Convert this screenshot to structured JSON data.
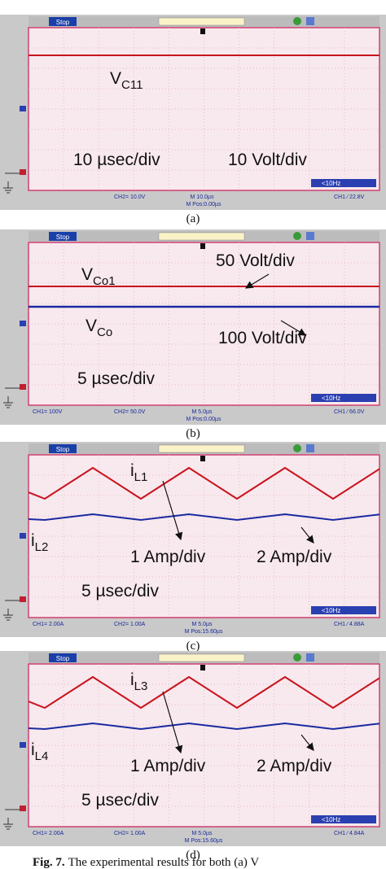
{
  "panels": [
    {
      "caption": "(a)",
      "status": "Stop",
      "readouts": {
        "ch2": "CH2= 10.0V",
        "time": "M 10.0µs",
        "pos": "M Pos:0.00µs",
        "trig": "CH1 ∕ 22.8V",
        "freq": "<10Hz"
      },
      "annotations": [
        {
          "text": "V",
          "sub": "C11"
        },
        {
          "text": "10 µsec/div"
        },
        {
          "text": "10 Volt/div"
        }
      ]
    },
    {
      "caption": "(b)",
      "status": "Stop",
      "readouts": {
        "ch1": "CH1= 100V",
        "ch2": "CH2= 50.0V",
        "time": "M 5.0µs",
        "pos": "M Pos:0.00µs",
        "trig": "CH1 ∕ 66.0V",
        "freq": "<10Hz"
      },
      "annotations": [
        {
          "text": "V",
          "sub": "Co1"
        },
        {
          "text": "50 Volt/div"
        },
        {
          "text": "V",
          "sub": "Co"
        },
        {
          "text": "100 Volt/div"
        },
        {
          "text": "5 µsec/div"
        }
      ]
    },
    {
      "caption": "(c)",
      "status": "Stop",
      "readouts": {
        "ch1": "CH1= 2.00A",
        "ch2": "CH2= 1.00A",
        "time": "M 5.0µs",
        "pos": "M Pos:15.60µs",
        "trig": "CH1 ∕ 4.88A",
        "freq": "<10Hz"
      },
      "annotations": [
        {
          "text": "i",
          "sub": "L1"
        },
        {
          "text": "i",
          "sub": "L2"
        },
        {
          "text": "1 Amp/div"
        },
        {
          "text": "2 Amp/div"
        },
        {
          "text": "5 µsec/div"
        }
      ]
    },
    {
      "caption": "(d)",
      "status": "Stop",
      "readouts": {
        "ch1": "CH1= 2.00A",
        "ch2": "CH2= 1.00A",
        "time": "M 5.0µs",
        "pos": "M Pos:15.60µs",
        "trig": "CH1 ∕ 4.84A",
        "freq": "<10Hz"
      },
      "annotations": [
        {
          "text": "i",
          "sub": "L3"
        },
        {
          "text": "i",
          "sub": "L4"
        },
        {
          "text": "1 Amp/div"
        },
        {
          "text": "2 Amp/div"
        },
        {
          "text": "5 µsec/div"
        }
      ]
    }
  ],
  "figure_caption": {
    "label": "Fig. 7.",
    "text": "The experimental results for both (a) V"
  }
}
